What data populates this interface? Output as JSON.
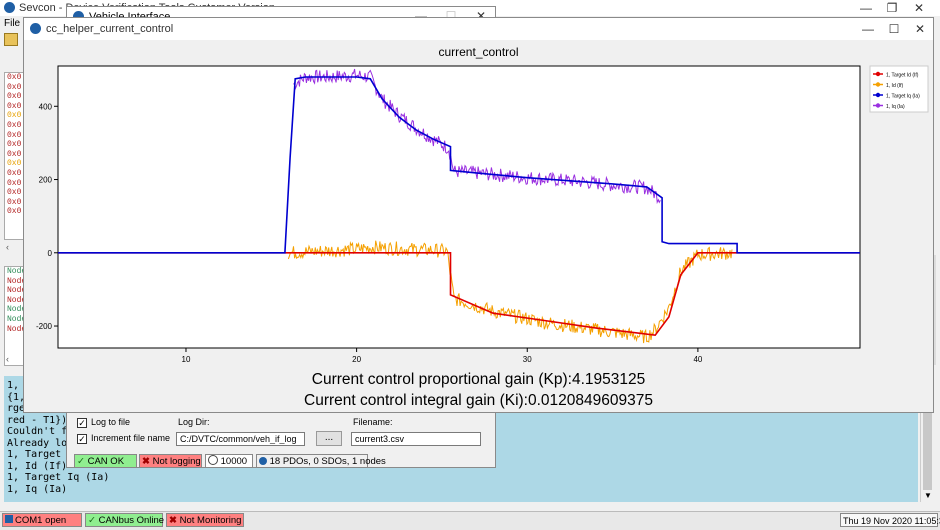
{
  "main_window": {
    "title": "Sevcon - Device Verification Tools Customer Version",
    "menu_file": "File",
    "left_list_top": [
      "0x0",
      "0x0",
      "0x0",
      "0x0",
      "0x0",
      "0x0",
      "0x0",
      "0x0",
      "0x0",
      "0x0",
      "0x0",
      "0x0",
      "0x0",
      "0x0",
      "0x0"
    ],
    "left_list_top_colors": [
      "#b22222",
      "#b22222",
      "#b22222",
      "#b22222",
      "#e6a000",
      "#b22222",
      "#b22222",
      "#b22222",
      "#b22222",
      "#e6a000",
      "#b22222",
      "#b22222",
      "#b22222",
      "#b22222",
      "#b22222"
    ],
    "left_list_bottom": [
      "Node",
      "Node",
      "Node",
      "Node",
      "Node",
      "Node",
      "Node"
    ],
    "left_list_bottom_colors": [
      "#2e8b57",
      "#b22222",
      "#b22222",
      "#b22222",
      "#2e8b57",
      "#2e8b57",
      "#b22222"
    ]
  },
  "console": {
    "lines": [
      "1, I",
      "{1, ",
      "rge ",
      "red - T1})",
      "Couldn't find h",
      "Already logged",
      "1, Target Id (",
      "1, Id (If)",
      "1, Target Iq (Ia)",
      "1, Iq (Ia)"
    ],
    "right_chars": [
      "(",
      "("
    ]
  },
  "vehicle_window": {
    "title": "Vehicle Interface",
    "log_to_file": "Log to file",
    "increment_file_name": "Increment file name",
    "log_dir_label": "Log Dir:",
    "log_dir_value": "C:/DVTC/common/veh_if_log",
    "browse_label": "...",
    "filename_label": "Filename:",
    "filename_value": "current3.csv",
    "can_ok": "CAN OK",
    "not_logging": "Not logging",
    "rate": "10000",
    "pdo_info": "18 PDOs, 0 SDOs, 1 nodes"
  },
  "plot_window": {
    "title": "cc_helper_current_control",
    "plot_title": "current_control",
    "kp_text": "Current control proportional gain (Kp):4.1953125",
    "ki_text": "Current control integral gain (Ki):0.0120849609375"
  },
  "chart_data": {
    "type": "line",
    "title": "current_control",
    "xlabel": "",
    "ylabel": "",
    "xlim": [
      2.5,
      49.5
    ],
    "ylim": [
      -260,
      510
    ],
    "xticks": [
      10,
      20,
      30,
      40
    ],
    "yticks": [
      -200,
      0,
      200,
      400
    ],
    "legend_position": "top-right",
    "grid": false,
    "series": [
      {
        "name": "1, Target Id (If)",
        "color": "#e00000",
        "x": [
          2.5,
          25.5,
          25.5,
          28,
          31,
          34,
          37.5,
          38.3,
          39,
          40,
          49.5
        ],
        "y": [
          0,
          0,
          -115,
          -165,
          -185,
          -205,
          -225,
          -175,
          -60,
          0,
          0
        ]
      },
      {
        "name": "1, Id (If)",
        "color": "#f5a000",
        "x": [
          16,
          18,
          20,
          21,
          23,
          25.3,
          25.7,
          28,
          31,
          34,
          37,
          37.5,
          38.3,
          39,
          40,
          42
        ],
        "y": [
          0,
          5,
          10,
          15,
          10,
          5,
          -125,
          -160,
          -190,
          -210,
          -230,
          -210,
          -150,
          -50,
          -5,
          0
        ]
      },
      {
        "name": "1, Target Iq (Ia)",
        "color": "#0000d0",
        "x": [
          2.5,
          15.8,
          16.1,
          16.4,
          17,
          18.5,
          20,
          20.8,
          21.5,
          22.5,
          23.5,
          24.5,
          25.5,
          25.5,
          27,
          30,
          33,
          35,
          37,
          37.9,
          37.9,
          38.3,
          42.3,
          42.3,
          49.5
        ],
        "y": [
          0,
          0,
          260,
          475,
          480,
          480,
          480,
          475,
          420,
          370,
          335,
          310,
          290,
          225,
          218,
          205,
          195,
          188,
          180,
          150,
          30,
          25,
          25,
          0,
          0
        ]
      },
      {
        "name": "1, Iq (Ia)",
        "color": "#9a30e0",
        "x": [
          16.3,
          17,
          18.5,
          20,
          20.8,
          21.5,
          22.5,
          23.5,
          24.5,
          25.4,
          25.7,
          27,
          30,
          33,
          35,
          37,
          37.8
        ],
        "y": [
          460,
          480,
          480,
          485,
          480,
          420,
          375,
          340,
          310,
          285,
          222,
          218,
          205,
          195,
          185,
          178,
          150
        ]
      }
    ]
  }
}
